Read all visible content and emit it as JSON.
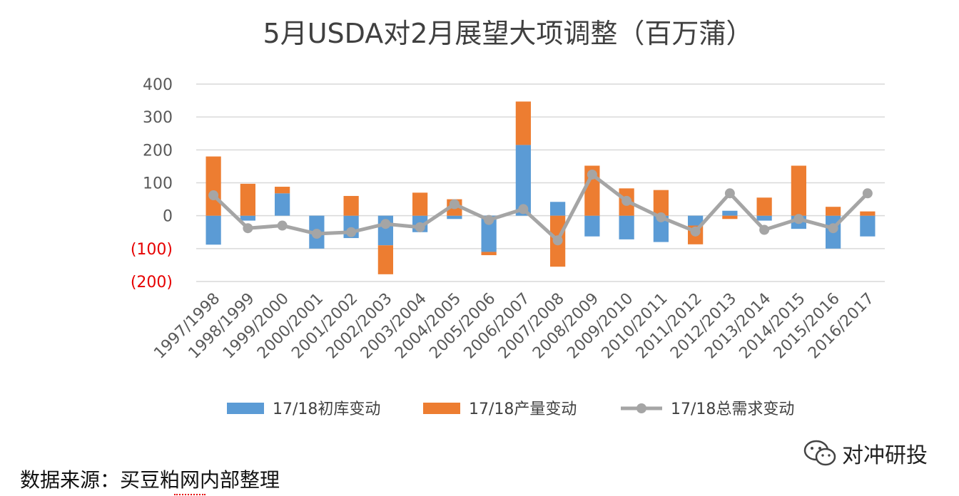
{
  "chart_data": {
    "type": "bar",
    "title": "5月USDA对2月展望大项调整（百万蒲）",
    "categories": [
      "1997/1998",
      "1998/1999",
      "1999/2000",
      "2000/2001",
      "2001/2002",
      "2002/2003",
      "2003/2004",
      "2004/2005",
      "2005/2006",
      "2006/2007",
      "2007/2008",
      "2008/2009",
      "2009/2010",
      "2010/2011",
      "2011/2012",
      "2012/2013",
      "2013/2014",
      "2014/2015",
      "2015/2016",
      "2016/2017"
    ],
    "ylim": [
      -200,
      400
    ],
    "yticks": [
      {
        "value": 400,
        "label": "400"
      },
      {
        "value": 300,
        "label": "300"
      },
      {
        "value": 200,
        "label": "200"
      },
      {
        "value": 100,
        "label": "100"
      },
      {
        "value": 0,
        "label": "0"
      },
      {
        "value": -100,
        "label": "(100)"
      },
      {
        "value": -200,
        "label": "(200)"
      }
    ],
    "grid": true,
    "stacked": true,
    "legend_position": "bottom",
    "series": [
      {
        "name": "17/18初库变动",
        "kind": "bar",
        "color": "#5b9bd5",
        "values": [
          -88,
          -15,
          68,
          -100,
          -68,
          -90,
          -50,
          -10,
          -110,
          215,
          42,
          -63,
          -72,
          -80,
          -30,
          15,
          -15,
          -40,
          -100,
          -63
        ]
      },
      {
        "name": "17/18产量变动",
        "kind": "bar",
        "color": "#ed7d31",
        "values": [
          180,
          97,
          20,
          0,
          60,
          -88,
          70,
          50,
          -10,
          132,
          -155,
          152,
          83,
          78,
          -57,
          -10,
          55,
          152,
          27,
          13
        ]
      },
      {
        "name": "17/18总需求变动",
        "kind": "line",
        "color": "#a5a5a5",
        "values": [
          62,
          -38,
          -30,
          -55,
          -50,
          -25,
          -35,
          35,
          -13,
          20,
          -75,
          125,
          45,
          -5,
          -48,
          68,
          -43,
          -10,
          -38,
          68
        ]
      }
    ]
  },
  "source_note": "数据来源：买豆粕网内部整理",
  "watermark": "对冲研投"
}
